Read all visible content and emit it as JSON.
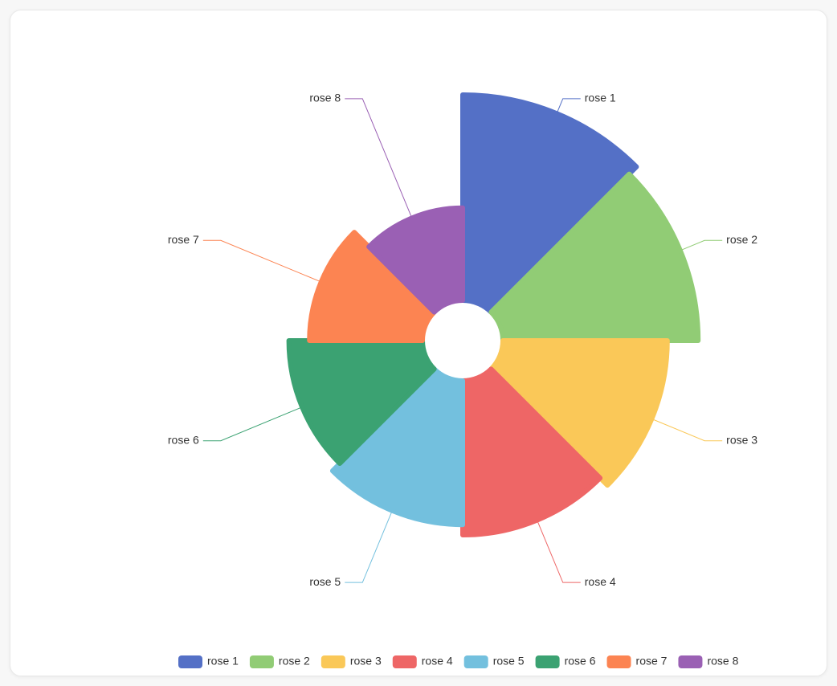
{
  "chart_data": {
    "type": "pie",
    "rose": true,
    "categories": [
      "rose 1",
      "rose 2",
      "rose 3",
      "rose 4",
      "rose 5",
      "rose 6",
      "rose 7",
      "rose 8"
    ],
    "values": [
      40,
      38,
      32,
      30,
      28,
      26,
      22,
      18
    ],
    "colors": [
      "#5470c6",
      "#91cc75",
      "#fac858",
      "#ee6666",
      "#73c0de",
      "#3ba272",
      "#fc8452",
      "#9a60b4"
    ],
    "legend": "bottom"
  }
}
